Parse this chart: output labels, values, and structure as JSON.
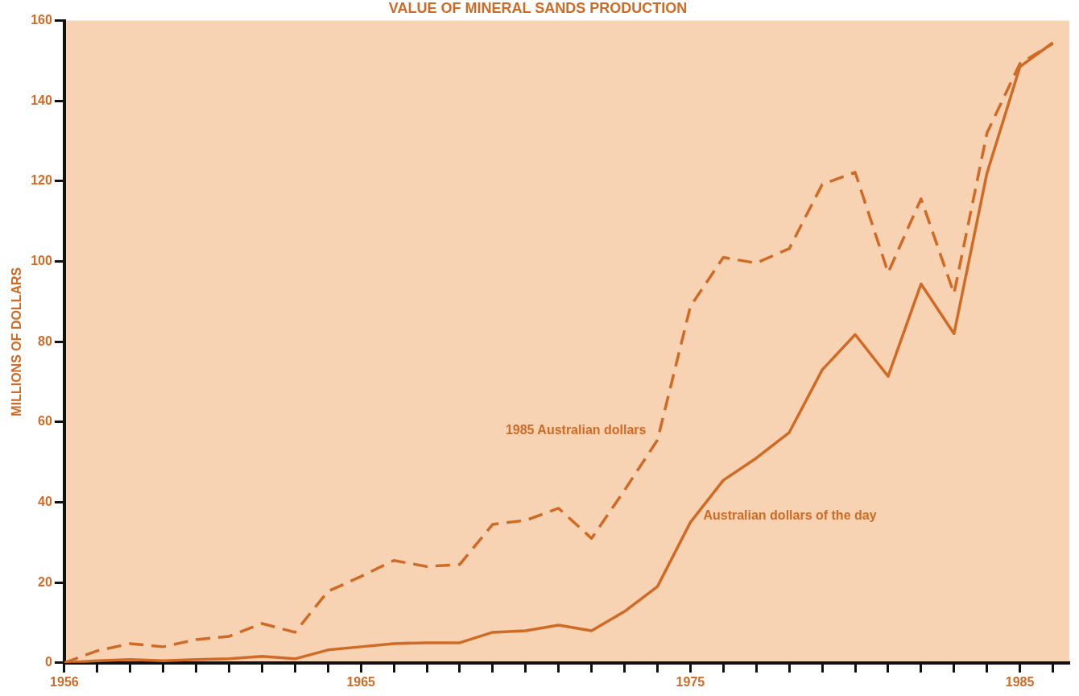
{
  "chart_data": {
    "type": "line",
    "title": "VALUE OF MINERAL SANDS PRODUCTION",
    "ylabel": "MILLIONS OF DOLLARS",
    "x": [
      1956,
      1957,
      1958,
      1959,
      1960,
      1961,
      1962,
      1963,
      1964,
      1965,
      1966,
      1967,
      1968,
      1969,
      1970,
      1971,
      1972,
      1973,
      1974,
      1975,
      1976,
      1977,
      1978,
      1979,
      1980,
      1981,
      1982,
      1983,
      1984,
      1985,
      1986
    ],
    "series": [
      {
        "name": "1985 Australian dollars",
        "color": "#d06a24",
        "line_style": "dashed",
        "values": [
          0,
          3,
          4.8,
          4,
          5.8,
          6.6,
          9.8,
          7.6,
          17.8,
          21.5,
          25.5,
          24,
          24.5,
          34.5,
          35.5,
          38.5,
          31,
          43,
          55.5,
          88.8,
          101,
          99.6,
          103.2,
          119.2,
          122.2,
          97.2,
          115.6,
          92,
          132,
          149.3,
          154.3
        ]
      },
      {
        "name": "Australian dollars of the day",
        "color": "#d06a24",
        "line_style": "solid",
        "values": [
          0,
          0.5,
          0.8,
          0.5,
          0.8,
          1,
          1.6,
          1,
          3.2,
          4,
          4.8,
          5,
          5,
          7.6,
          8,
          9.4,
          8,
          12.8,
          19,
          35,
          45.5,
          51,
          57.4,
          73,
          81.8,
          71.4,
          94.4,
          82,
          122,
          148.5,
          154.5
        ]
      }
    ],
    "xlim": [
      1956,
      1986.5
    ],
    "xticks": [
      {
        "value": 1956,
        "label": "1956"
      },
      {
        "value": 1957,
        "label": null
      },
      {
        "value": 1958,
        "label": null
      },
      {
        "value": 1959,
        "label": null
      },
      {
        "value": 1960,
        "label": null
      },
      {
        "value": 1961,
        "label": null
      },
      {
        "value": 1962,
        "label": null
      },
      {
        "value": 1963,
        "label": null
      },
      {
        "value": 1964,
        "label": null
      },
      {
        "value": 1965,
        "label": "1965"
      },
      {
        "value": 1966,
        "label": null
      },
      {
        "value": 1967,
        "label": null
      },
      {
        "value": 1968,
        "label": null
      },
      {
        "value": 1969,
        "label": null
      },
      {
        "value": 1970,
        "label": null
      },
      {
        "value": 1971,
        "label": null
      },
      {
        "value": 1972,
        "label": null
      },
      {
        "value": 1973,
        "label": null
      },
      {
        "value": 1974,
        "label": null
      },
      {
        "value": 1975,
        "label": "1975"
      },
      {
        "value": 1976,
        "label": null
      },
      {
        "value": 1977,
        "label": null
      },
      {
        "value": 1978,
        "label": null
      },
      {
        "value": 1979,
        "label": null
      },
      {
        "value": 1980,
        "label": null
      },
      {
        "value": 1981,
        "label": null
      },
      {
        "value": 1982,
        "label": null
      },
      {
        "value": 1983,
        "label": null
      },
      {
        "value": 1984,
        "label": null
      },
      {
        "value": 1985,
        "label": "1985"
      },
      {
        "value": 1986,
        "label": null
      }
    ],
    "ylim": [
      0,
      160
    ],
    "yticks": [
      0,
      20,
      40,
      60,
      80,
      100,
      120,
      140,
      160
    ],
    "grid": false,
    "legend": false,
    "marker": "none"
  }
}
